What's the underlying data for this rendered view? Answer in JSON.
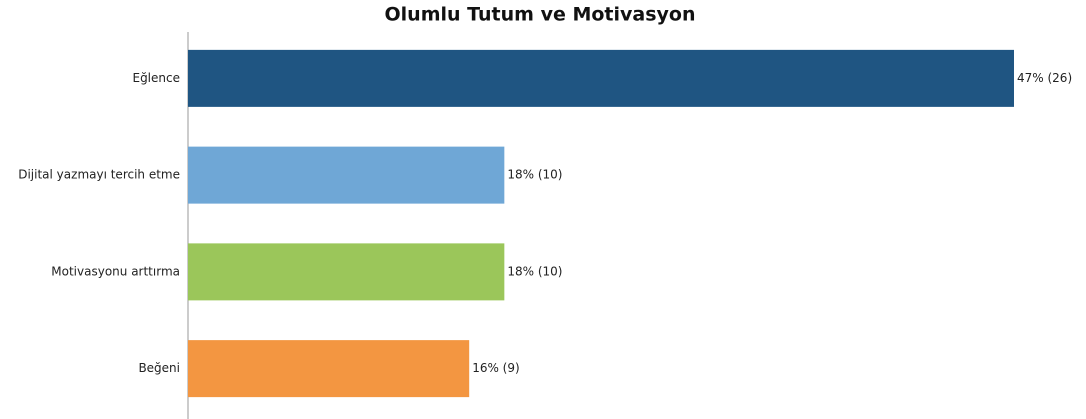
{
  "chart_data": {
    "type": "bar",
    "orientation": "horizontal",
    "title": "Olumlu Tutum ve Motivasyon",
    "categories": [
      "Eğlence",
      "Dijital yazmayı tercih etme",
      "Motivasyonu arttırma",
      "Beğeni"
    ],
    "values": [
      47,
      18,
      18,
      16
    ],
    "value_labels": [
      "47% (26)",
      "18% (10)",
      "18% (10)",
      "16% (9)"
    ],
    "colors": [
      "#1f5582",
      "#6fa7d6",
      "#9bc65a",
      "#f39641"
    ]
  }
}
